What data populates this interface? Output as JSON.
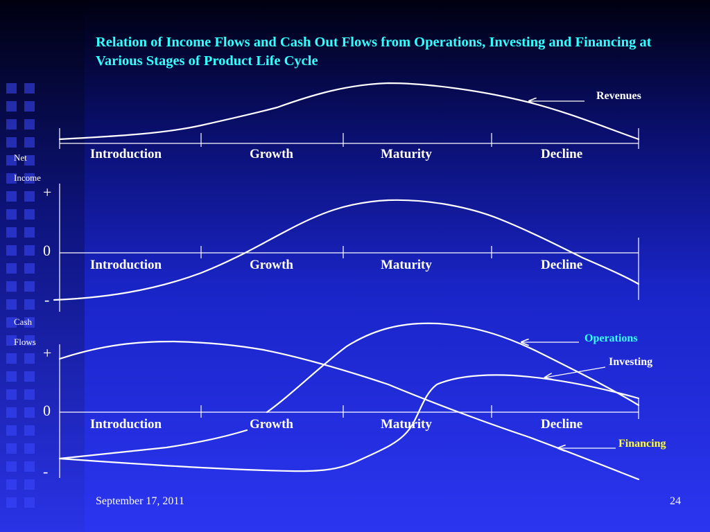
{
  "title": "Relation of Income Flows and Cash Out Flows from Operations, Investing and Financing at Various Stages of Product Life Cycle",
  "stages": [
    "Introduction",
    "Growth",
    "Maturity",
    "Decline"
  ],
  "panels": {
    "revenues": {
      "callout": "Revenues"
    },
    "net_income": {
      "label_line1": "Net",
      "label_line2": "Income",
      "plus": "+",
      "zero": "0",
      "minus": "-"
    },
    "cash_flows": {
      "label_line1": "Cash",
      "label_line2": "Flows",
      "plus": "+",
      "zero": "0",
      "minus": "-",
      "operations": "Operations",
      "investing": "Investing",
      "financing": "Financing"
    }
  },
  "colors": {
    "title": "#33ffff",
    "operations": "#33ffff",
    "financing": "#ffff33",
    "text": "#ffffff"
  },
  "footer": {
    "date": "September 17, 2011",
    "page": "24"
  }
}
